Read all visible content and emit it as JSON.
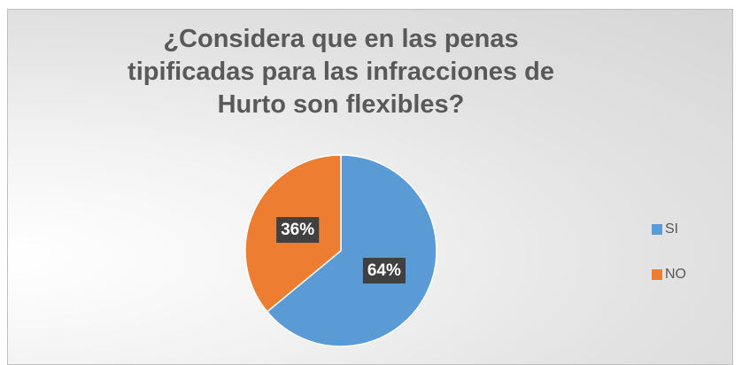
{
  "chart_data": {
    "type": "pie",
    "title": "¿Considera que en las penas tipificadas para las infracciones de Hurto son flexibles?",
    "categories": [
      "SI",
      "NO"
    ],
    "values": [
      64,
      36
    ],
    "value_labels": [
      "64%",
      "36%"
    ],
    "colors": [
      "#5b9bd5",
      "#ed7d31"
    ],
    "legend": "right"
  }
}
